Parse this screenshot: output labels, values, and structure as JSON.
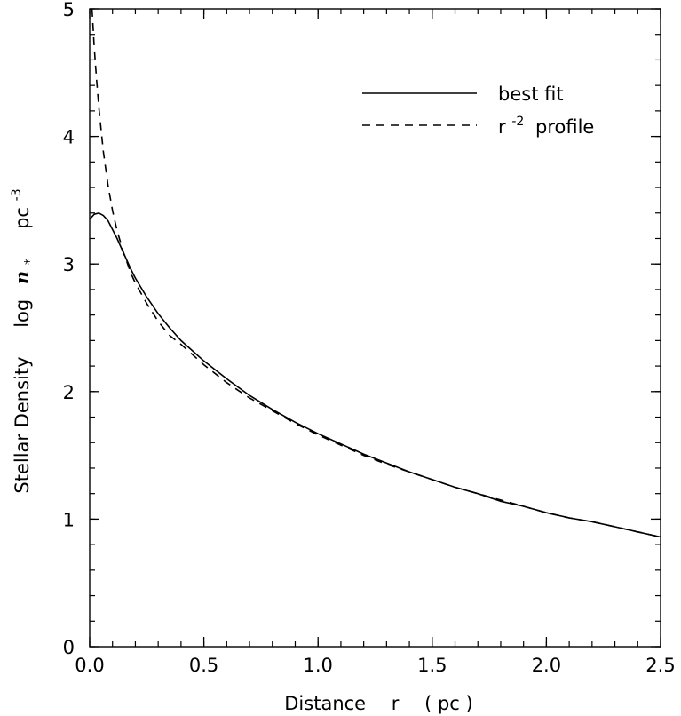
{
  "chart_data": {
    "type": "line",
    "xlabel": {
      "word": "Distance",
      "var": "r",
      "unit": "( pc )"
    },
    "ylabel": {
      "word": "Stellar Density",
      "log": "log",
      "var": "n",
      "sub": "*",
      "unit": "pc",
      "unit_exp": "-3"
    },
    "xlim": [
      0,
      2.5
    ],
    "ylim": [
      0,
      5
    ],
    "xticks": [
      "0.0",
      "0.5",
      "1.0",
      "1.5",
      "2.0",
      "2.5"
    ],
    "yticks": [
      "0",
      "1",
      "2",
      "3",
      "4",
      "5"
    ],
    "x_minor_step": 0.1,
    "y_minor_step": 0.2,
    "grid": false,
    "legend_position": "top-right",
    "series": [
      {
        "name": "best fit",
        "style": "solid",
        "x": [
          0.0,
          0.02,
          0.04,
          0.06,
          0.08,
          0.1,
          0.12,
          0.14,
          0.16,
          0.18,
          0.2,
          0.25,
          0.3,
          0.35,
          0.4,
          0.5,
          0.6,
          0.7,
          0.8,
          0.9,
          1.0,
          1.1,
          1.2,
          1.3,
          1.4,
          1.5,
          1.6,
          1.7,
          1.8,
          1.9,
          2.0,
          2.1,
          2.2,
          2.3,
          2.4,
          2.5
        ],
        "y": [
          3.35,
          3.39,
          3.4,
          3.38,
          3.34,
          3.27,
          3.2,
          3.12,
          3.04,
          2.96,
          2.89,
          2.74,
          2.61,
          2.5,
          2.4,
          2.24,
          2.1,
          1.97,
          1.86,
          1.76,
          1.67,
          1.59,
          1.51,
          1.44,
          1.37,
          1.31,
          1.25,
          1.2,
          1.14,
          1.1,
          1.05,
          1.01,
          0.98,
          0.94,
          0.9,
          0.86
        ]
      },
      {
        "name_parts": {
          "base": "r",
          "exp": "-2",
          "rest": "profile"
        },
        "style": "dashed",
        "x": [
          0.01,
          0.015,
          0.02,
          0.03,
          0.04,
          0.05,
          0.06,
          0.08,
          0.1,
          0.12,
          0.15,
          0.18,
          0.2,
          0.25,
          0.3,
          0.35,
          0.4,
          0.5,
          0.6,
          0.7,
          0.8,
          0.9,
          1.0,
          1.1,
          1.2,
          1.3,
          1.4,
          1.5,
          1.6,
          1.7,
          1.8,
          1.9,
          2.0,
          2.1,
          2.2,
          2.3,
          2.4,
          2.5
        ],
        "y": [
          5.0,
          4.85,
          4.7,
          4.45,
          4.23,
          4.05,
          3.88,
          3.62,
          3.42,
          3.26,
          3.08,
          2.93,
          2.85,
          2.69,
          2.55,
          2.44,
          2.37,
          2.21,
          2.07,
          1.95,
          1.85,
          1.75,
          1.66,
          1.58,
          1.5,
          1.43,
          1.37,
          1.31,
          1.25,
          1.2,
          1.15,
          1.1,
          1.05,
          1.01,
          0.98,
          0.94,
          0.9,
          0.86
        ]
      }
    ]
  }
}
